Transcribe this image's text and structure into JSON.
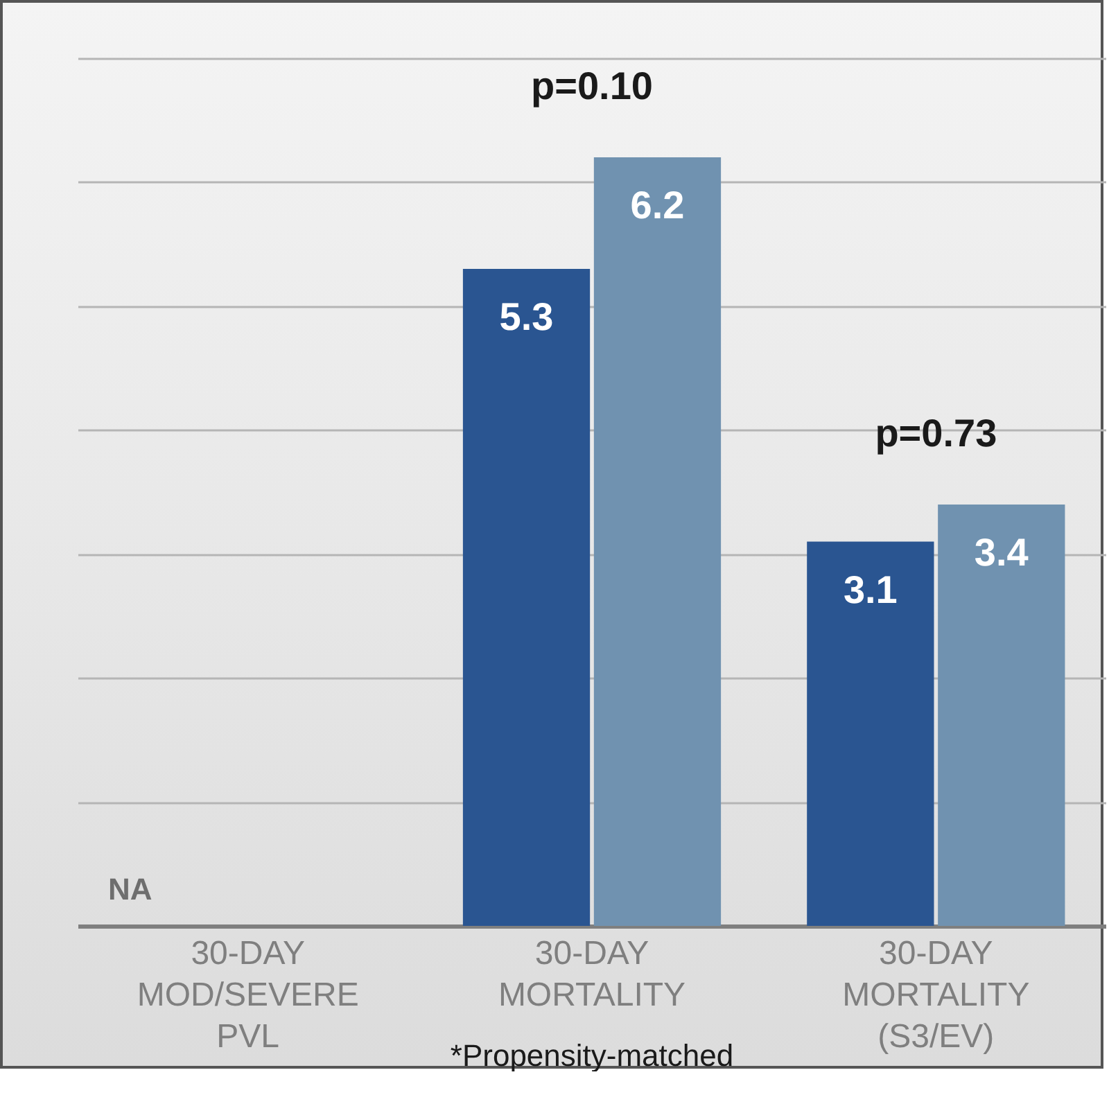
{
  "chart_data": {
    "type": "bar",
    "categories": [
      "30-DAY MOD/SEVERE PVL",
      "30-DAY MORTALITY",
      "30-DAY MORTALITY (S3/EV)"
    ],
    "series": [
      {
        "color": "#2a5591",
        "values": [
          null,
          5.3,
          3.1
        ]
      },
      {
        "color": "#7092b0",
        "values": [
          null,
          6.2,
          3.4
        ]
      }
    ],
    "ylim": [
      0,
      7
    ],
    "yticks": [
      {
        "value": 0,
        "label": null
      },
      {
        "value": 1,
        "label": null
      },
      {
        "value": 2,
        "label": null
      },
      {
        "value": 3,
        "label": null
      },
      {
        "value": 4,
        "label": null
      },
      {
        "value": 5,
        "label": null
      },
      {
        "value": 6,
        "label": null
      },
      {
        "value": 7,
        "label": null
      }
    ],
    "grid": "y",
    "tick_labels": "x",
    "data_labels": true,
    "legend": false,
    "annotations": [
      "p=0.10",
      "p=0.73",
      "NA",
      "*Propensity-matched"
    ]
  }
}
